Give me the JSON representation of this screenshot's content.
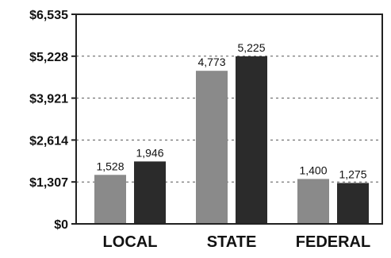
{
  "chart_data": {
    "type": "bar",
    "categories": [
      "LOCAL",
      "STATE",
      "FEDERAL"
    ],
    "series": [
      {
        "values": [
          1528,
          4773,
          1400
        ],
        "labels": [
          "1,528",
          "4,773",
          "1,400"
        ],
        "color": "#8a8a8a"
      },
      {
        "values": [
          1946,
          5225,
          1275
        ],
        "labels": [
          "1,946",
          "5,225",
          "1,275"
        ],
        "color": "#2b2b2b"
      }
    ],
    "yticks": [
      0,
      1307,
      2614,
      3921,
      5228,
      6535
    ],
    "ytick_labels": [
      "$0",
      "$1,307",
      "$2,614",
      "$3,921",
      "$5,228",
      "$6,535"
    ],
    "ylim": [
      0,
      6535
    ],
    "grid": true,
    "title": "",
    "xlabel": "",
    "ylabel": ""
  }
}
